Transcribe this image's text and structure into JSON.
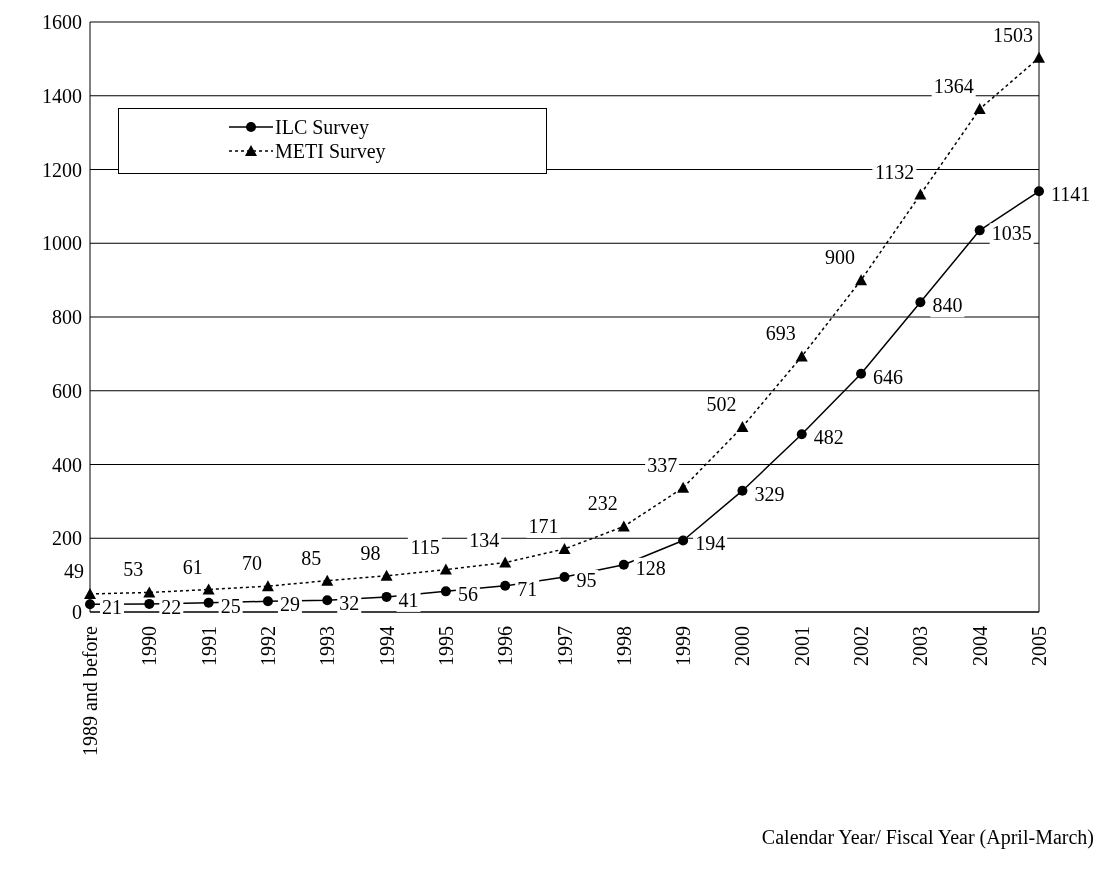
{
  "chart_data": {
    "type": "line",
    "xlabel": "Calendar Year/ Fiscal Year (April-March)",
    "categories": [
      "1989 and before",
      "1990",
      "1991",
      "1992",
      "1993",
      "1994",
      "1995",
      "1996",
      "1997",
      "1998",
      "1999",
      "2000",
      "2001",
      "2002",
      "2003",
      "2004",
      "2005"
    ],
    "series": [
      {
        "name": "ILC Survey",
        "color": "#000000",
        "marker": "circle",
        "line_style": "solid",
        "values": [
          21,
          22,
          25,
          29,
          32,
          41,
          56,
          71,
          95,
          128,
          194,
          329,
          482,
          646,
          840,
          1035,
          1141
        ]
      },
      {
        "name": "METI Survey",
        "color": "#000000",
        "marker": "triangle",
        "line_style": "dotted",
        "values": [
          49,
          53,
          61,
          70,
          85,
          98,
          115,
          134,
          171,
          232,
          337,
          502,
          693,
          900,
          1132,
          1364,
          1503
        ]
      }
    ],
    "ylim": [
      0,
      1600
    ],
    "yticks": [
      0,
      200,
      400,
      600,
      800,
      1000,
      1200,
      1400,
      1600
    ],
    "grid": "y",
    "legend": "top left",
    "data_labels": true
  }
}
